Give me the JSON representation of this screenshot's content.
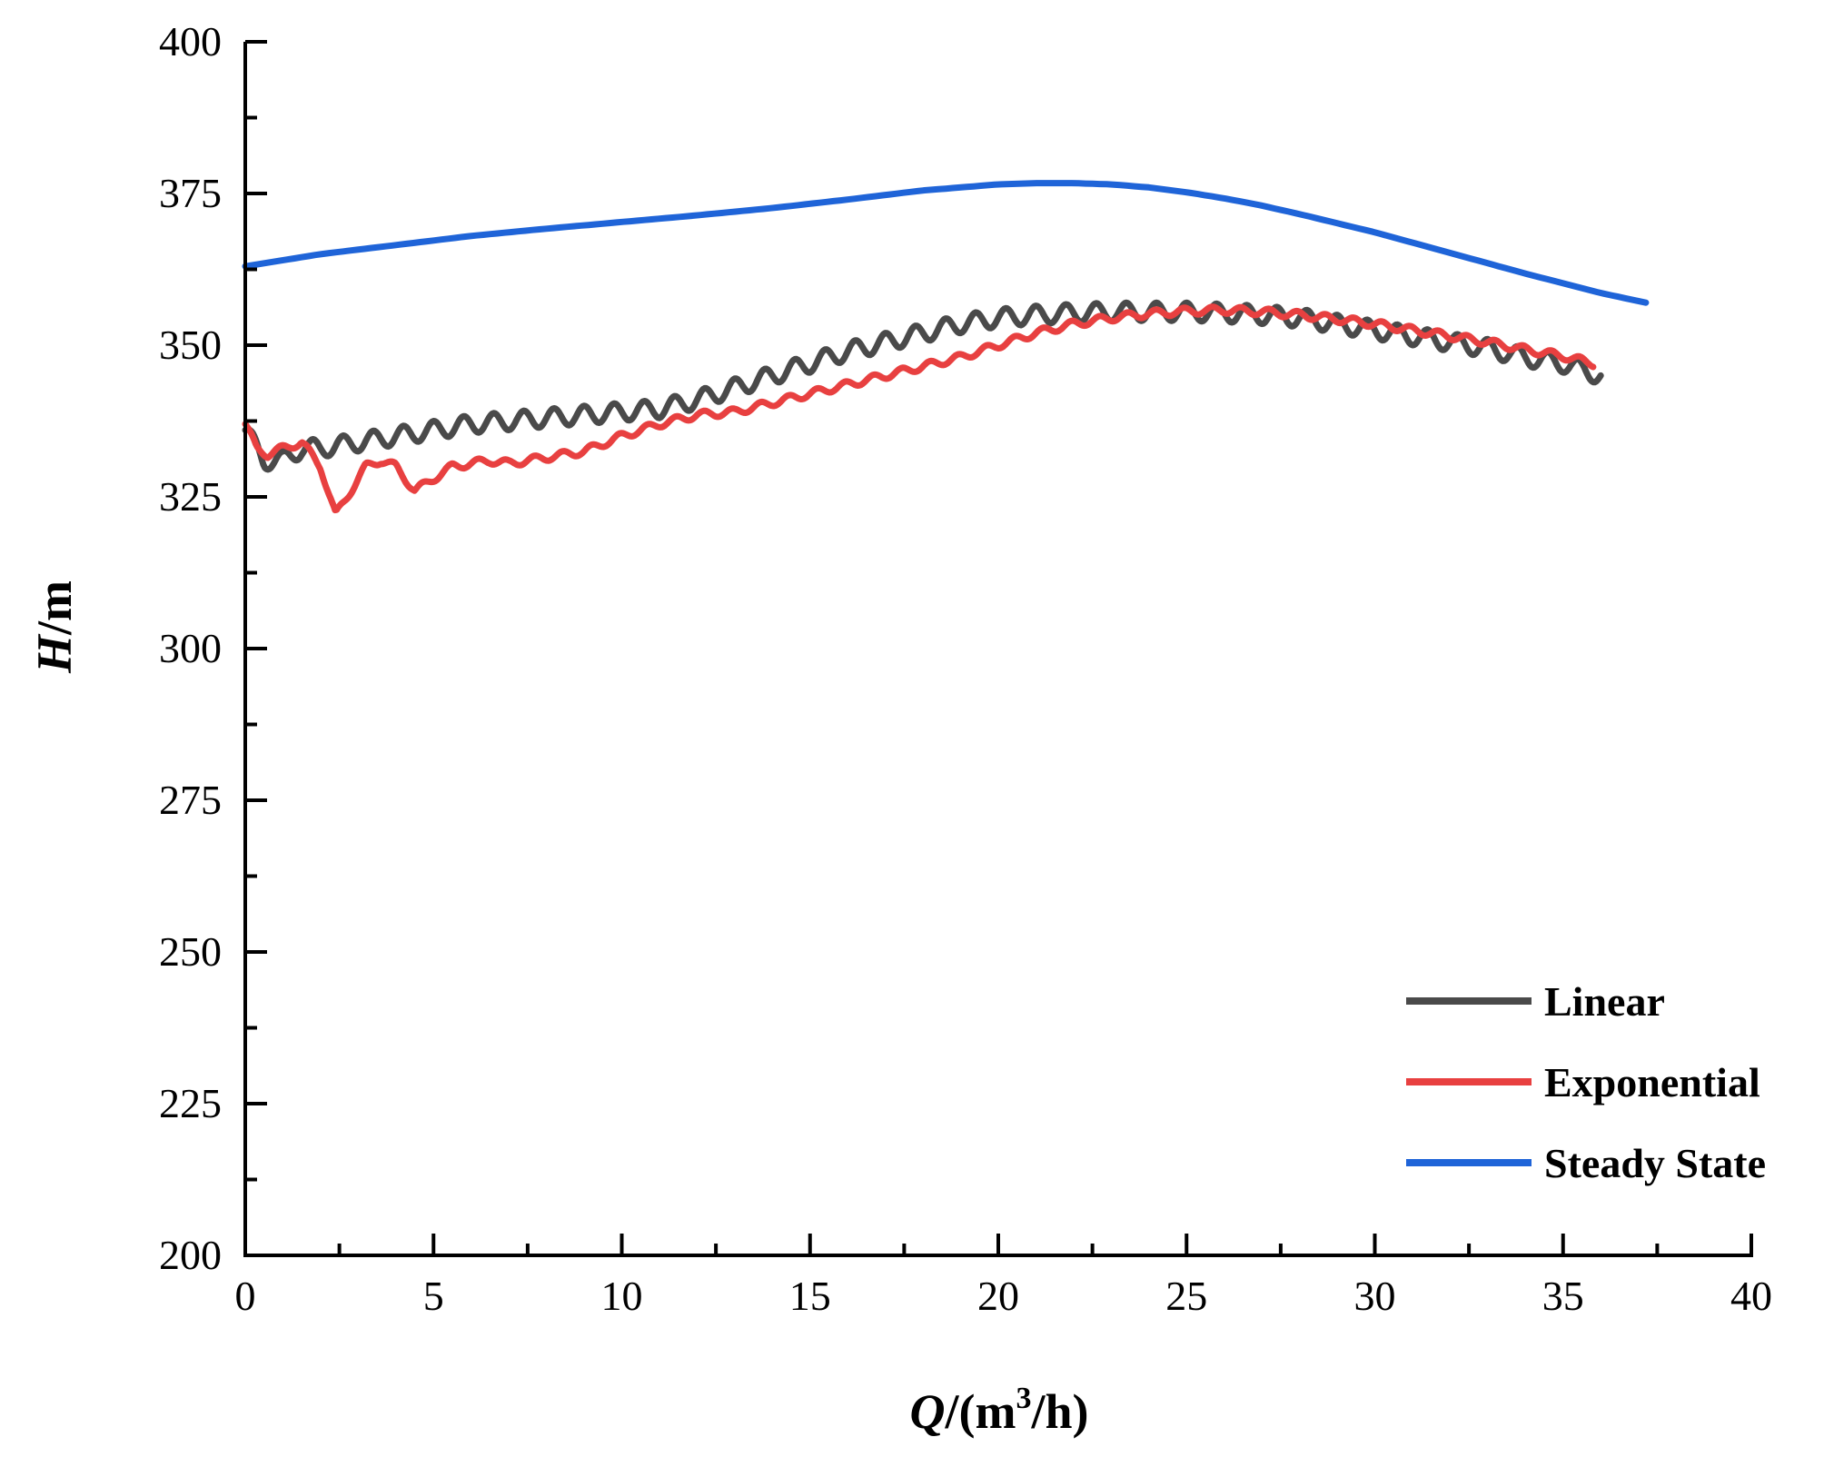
{
  "chart_data": {
    "type": "line",
    "title": "",
    "xlabel": {
      "var": "Q",
      "unit_open": "/(m",
      "sup": "3",
      "unit_close": "/h)"
    },
    "ylabel": {
      "var": "H",
      "unit": "/m"
    },
    "xlim": [
      0,
      40
    ],
    "ylim": [
      200,
      400
    ],
    "xticks": [
      0,
      5,
      10,
      15,
      20,
      25,
      30,
      35,
      40
    ],
    "yticks": [
      200,
      225,
      250,
      275,
      300,
      325,
      350,
      375,
      400
    ],
    "x_tick_labels": [
      "0",
      "5",
      "10",
      "15",
      "20",
      "25",
      "30",
      "35",
      "40"
    ],
    "y_tick_labels": [
      "200",
      "225",
      "250",
      "275",
      "300",
      "325",
      "350",
      "375",
      "400"
    ],
    "grid": false,
    "legend_position": "bottom-right",
    "series": [
      {
        "name": "Linear",
        "color": "#4a4a4a",
        "oscillation": {
          "amplitude": 1.5,
          "period": 0.8
        },
        "x": [
          0,
          0.5,
          1,
          1.5,
          2,
          3,
          4,
          5,
          6,
          7,
          8,
          9,
          10,
          11,
          12,
          13,
          14,
          15,
          16,
          17,
          18,
          19,
          20,
          21,
          22,
          23,
          24,
          25,
          26,
          27,
          28,
          29,
          30,
          31,
          32,
          33,
          34,
          35,
          36
        ],
        "y": [
          336,
          331,
          331,
          333,
          333,
          334,
          335,
          336,
          337,
          337.5,
          338,
          338.5,
          339,
          339.5,
          341,
          343,
          345,
          347,
          349,
          350.5,
          352,
          353.5,
          354.5,
          355,
          355.3,
          355.5,
          355.5,
          355.5,
          355.3,
          355,
          354.5,
          353.5,
          352.5,
          351.5,
          350.5,
          349.5,
          348,
          347,
          345
        ]
      },
      {
        "name": "Exponential",
        "color": "#e84040",
        "oscillation": {
          "amplitude": 0.6,
          "period": 0.75
        },
        "x": [
          0,
          0.3,
          0.6,
          1,
          1.5,
          2,
          2.4,
          2.8,
          3.2,
          3.6,
          4,
          4.5,
          5,
          5.5,
          6,
          6.5,
          7,
          8,
          9,
          10,
          11,
          12,
          13,
          14,
          15,
          16,
          17,
          18,
          19,
          20,
          21,
          22,
          23,
          24,
          25,
          26,
          27,
          28,
          29,
          30,
          31,
          32,
          33,
          34,
          35,
          35.8
        ],
        "y": [
          337,
          333,
          332,
          333,
          334,
          330,
          322,
          326,
          330,
          331,
          330,
          326,
          328,
          330,
          330.5,
          331,
          330.5,
          331.5,
          332.5,
          335,
          337,
          338.5,
          339,
          340.5,
          342,
          343.5,
          345,
          346.5,
          348,
          350,
          352,
          353.5,
          354.5,
          355.2,
          355.6,
          355.8,
          355.5,
          355,
          354.3,
          353.5,
          352.5,
          351.5,
          350.5,
          349.3,
          348.2,
          347
        ]
      },
      {
        "name": "Steady State",
        "color": "#1f64d8",
        "oscillation": {
          "amplitude": 0,
          "period": 1
        },
        "x": [
          0,
          2,
          4,
          6,
          8,
          10,
          12,
          14,
          16,
          18,
          20,
          21,
          22,
          23,
          24,
          25,
          26,
          27,
          28,
          30,
          32,
          34,
          36,
          37.2
        ],
        "y": [
          363,
          365,
          366.5,
          368,
          369.2,
          370.3,
          371.4,
          372.6,
          374,
          375.5,
          376.5,
          376.7,
          376.7,
          376.5,
          376,
          375.2,
          374.2,
          373,
          371.6,
          368.6,
          365.2,
          361.8,
          358.6,
          357
        ]
      }
    ]
  }
}
